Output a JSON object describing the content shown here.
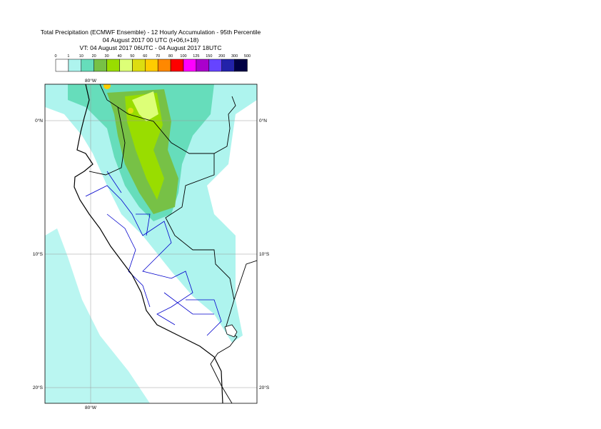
{
  "header": {
    "title_lines": [
      "Total Precipitation (ECMWF Ensemble) - 12 Hourly Accumulation - 95th Percentile",
      "04 August 2017 00 UTC (t+06,t+18)",
      "VT: 04 August 2017 06UTC - 04 August 2017 18UTC"
    ]
  },
  "legend": {
    "labels": [
      "0",
      "1",
      "10",
      "20",
      "30",
      "40",
      "50",
      "60",
      "70",
      "80",
      "100",
      "125",
      "150",
      "200",
      "300",
      "500"
    ],
    "colors": [
      "#ffffff",
      "#aef4ee",
      "#66ddbb",
      "#77c146",
      "#99dd00",
      "#ddff77",
      "#dddd11",
      "#ffcc00",
      "#ff8800",
      "#ff0000",
      "#ff00ff",
      "#aa00cc",
      "#6644ff",
      "#2222aa",
      "#000044"
    ]
  },
  "map": {
    "lon_labels": [
      "80°W"
    ],
    "lat_labels": [
      "0°N",
      "10°S",
      "20°S"
    ]
  }
}
